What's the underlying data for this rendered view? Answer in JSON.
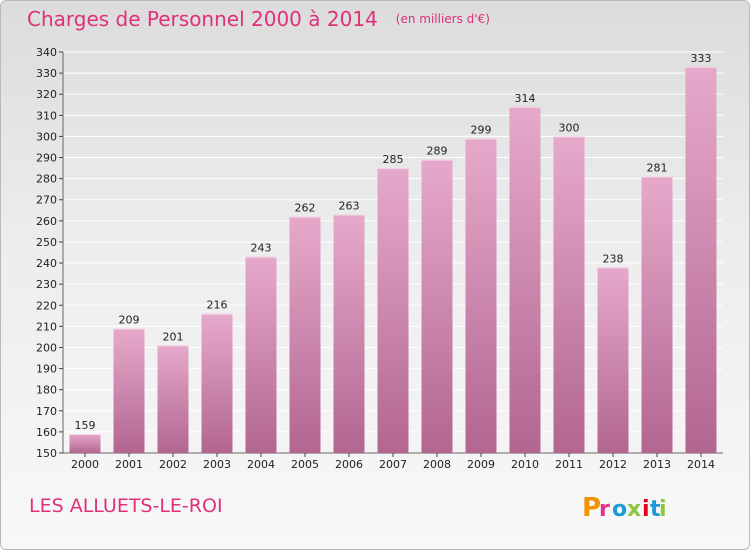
{
  "header": {
    "title": "Charges de Personnel 2000 à 2014",
    "unit": "(en milliers d'€)"
  },
  "footer": {
    "commune": "LES ALLUETS-LE-ROI",
    "logo_text": "Proxiti",
    "logo_colors": [
      "#f39200",
      "#e8308a",
      "#1d9ad6",
      "#8cc63f",
      "#e2001a",
      "#1d9ad6",
      "#8cc63f"
    ]
  },
  "colors": {
    "title": "#e0307a",
    "bar_light": "#e6a9cb",
    "bar_dark": "#b26690",
    "grid": "#ffffff"
  },
  "chart_data": {
    "type": "bar",
    "title": "Charges de Personnel 2000 à 2014",
    "subtitle": "(en milliers d'€)",
    "categories": [
      "2000",
      "2001",
      "2002",
      "2003",
      "2004",
      "2005",
      "2006",
      "2007",
      "2008",
      "2009",
      "2010",
      "2011",
      "2012",
      "2013",
      "2014"
    ],
    "values": [
      159,
      209,
      201,
      216,
      243,
      262,
      263,
      285,
      289,
      299,
      314,
      300,
      238,
      281,
      333
    ],
    "ylim": [
      150,
      340
    ],
    "ytick_step": 10,
    "grid": true,
    "data_labels": true,
    "legend": "none"
  }
}
